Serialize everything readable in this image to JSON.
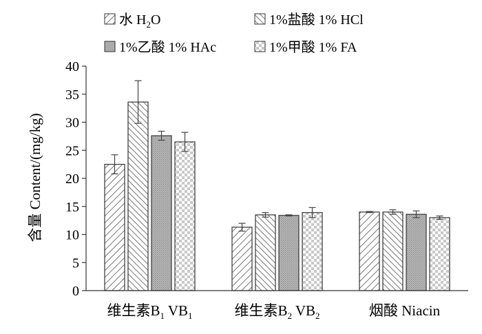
{
  "chart_data": {
    "type": "bar",
    "ylabel": "含量 Content/(mg/kg)",
    "ylim": [
      0,
      40
    ],
    "ytick_step": 5,
    "grid": false,
    "legend_position": "top",
    "categories": [
      {
        "main": "维生素B",
        "sub": "1",
        "rest": " VB",
        "sub2": "1"
      },
      {
        "main": "维生素B",
        "sub": "2",
        "rest": " VB",
        "sub2": "2"
      },
      {
        "main": "烟酸 Niacin",
        "sub": "",
        "rest": "",
        "sub2": ""
      }
    ],
    "series": [
      {
        "name": "水 H",
        "name_sub": "2",
        "name_rest": "O",
        "pattern": "diag-down-wide",
        "values": [
          22.5,
          11.3,
          14.0
        ],
        "errors": [
          1.7,
          0.7,
          0.1
        ]
      },
      {
        "name": "1%盐酸 1% HCl",
        "name_sub": "",
        "name_rest": "",
        "pattern": "diag-up",
        "values": [
          33.6,
          13.5,
          14.0
        ],
        "errors": [
          3.8,
          0.4,
          0.4
        ]
      },
      {
        "name": "1%乙酸 1% HAc",
        "name_sub": "",
        "name_rest": "",
        "pattern": "dots-dark",
        "values": [
          27.6,
          13.4,
          13.6
        ],
        "errors": [
          0.8,
          0.1,
          0.6
        ]
      },
      {
        "name": "1%甲酸 1% FA",
        "name_sub": "",
        "name_rest": "",
        "pattern": "checker-light",
        "values": [
          26.5,
          13.9,
          13.0
        ],
        "errors": [
          1.7,
          0.9,
          0.3
        ]
      }
    ]
  }
}
